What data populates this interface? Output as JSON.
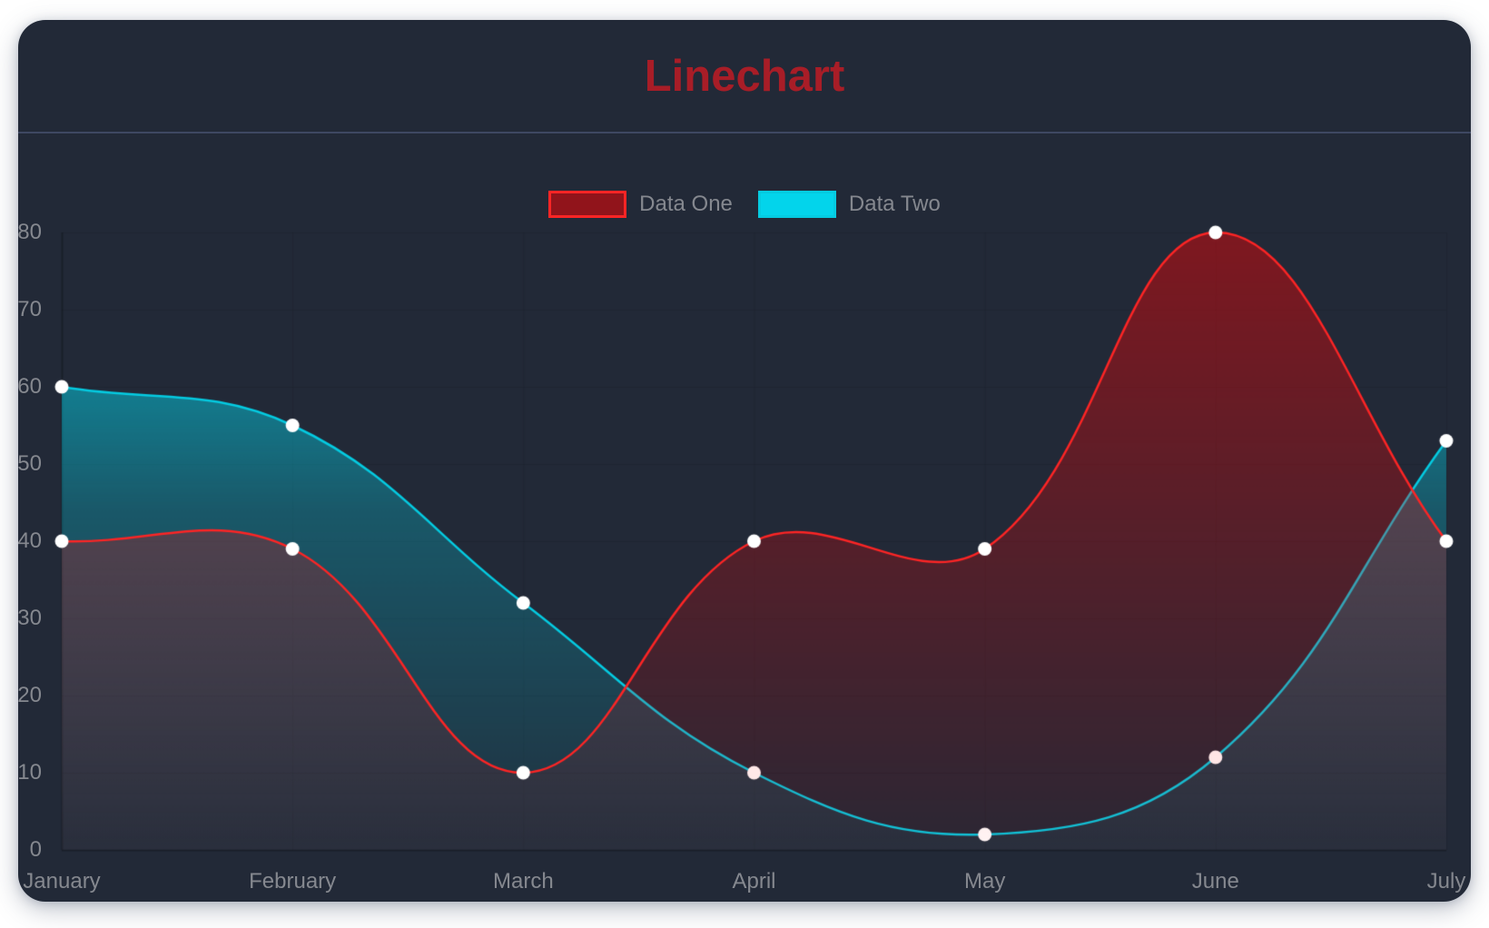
{
  "header": {
    "title": "Linechart",
    "title_color": "#a81d27",
    "divider_color": "#3e4862"
  },
  "card": {
    "background": "#222937"
  },
  "chart_data": {
    "type": "line",
    "title": "Linechart",
    "categories": [
      "January",
      "February",
      "March",
      "April",
      "May",
      "June",
      "July"
    ],
    "series": [
      {
        "name": "Data One",
        "values": [
          40,
          39,
          10,
          40,
          39,
          80,
          40
        ],
        "line_color": "#FC2525",
        "fill_gradient": [
          [
            0,
            "rgba(255,0,0,0.5)"
          ],
          [
            0.5,
            "rgba(255,0,0,0.25)"
          ],
          [
            1,
            "rgba(255,0,0,0)"
          ]
        ],
        "legend_swatch_fill": "rgba(255,0,0,0.5)"
      },
      {
        "name": "Data Two",
        "values": [
          60,
          55,
          32,
          10,
          2,
          12,
          53
        ],
        "line_color": "#05CBE1",
        "fill_gradient": [
          [
            0,
            "rgba(0,231,255,0.9)"
          ],
          [
            0.5,
            "rgba(0,231,255,0.25)"
          ],
          [
            1,
            "rgba(0,231,255,0)"
          ]
        ],
        "legend_swatch_fill": "rgba(0,231,255,0.9)"
      }
    ],
    "point_color": "#ffffff",
    "point_radius": 7.5,
    "line_width": 2.5,
    "line_tension": 0.4,
    "ylim": [
      0,
      80
    ],
    "yticks": [
      0,
      10,
      20,
      30,
      40,
      50,
      60,
      70,
      80
    ],
    "tick_color": "#85888f",
    "grid_color": "rgba(0,0,0,0.09)",
    "zero_line_color": "rgba(0,0,0,0.25)",
    "legend_position": "top-center",
    "grid": "on-subtle"
  }
}
